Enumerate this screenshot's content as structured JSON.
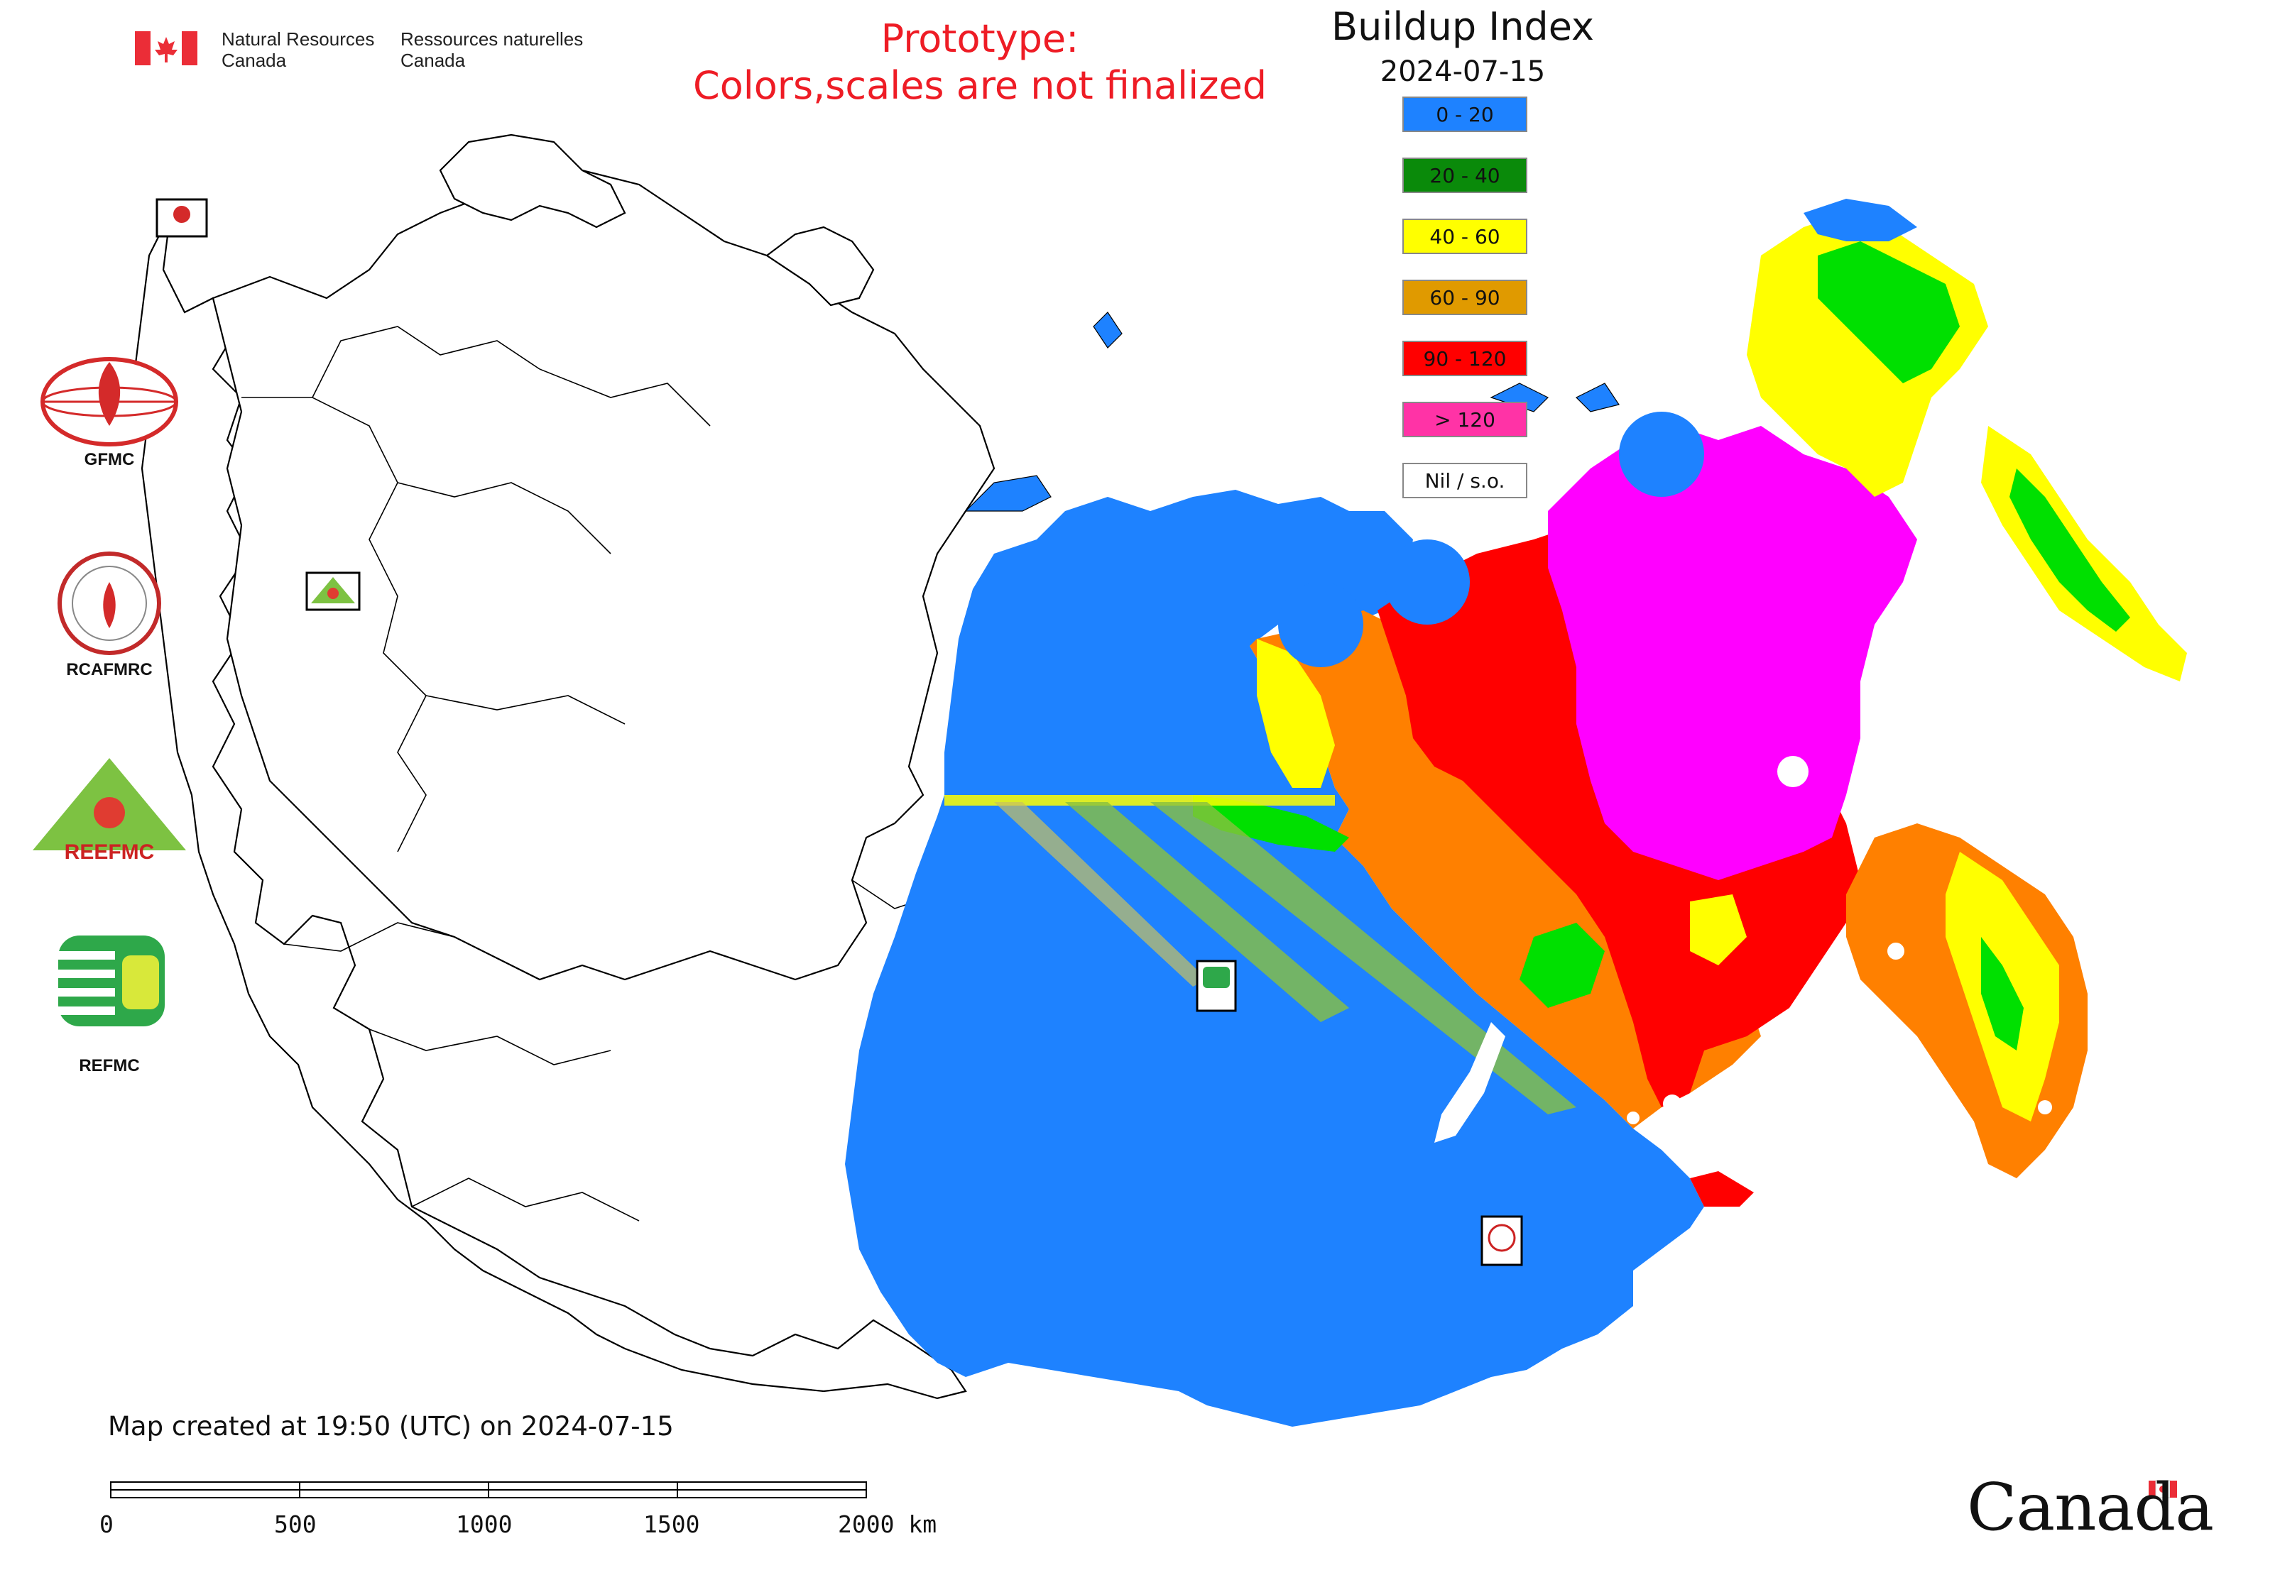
{
  "header": {
    "nrcan_en_line1": "Natural Resources",
    "nrcan_en_line2": "Canada",
    "nrcan_fr_line1": "Ressources naturelles",
    "nrcan_fr_line2": "Canada",
    "prototype_line1": "Prototype:",
    "prototype_line2": "Colors,scales are not finalized",
    "title": "Buildup Index",
    "date": "2024-07-15"
  },
  "legend": {
    "items": [
      {
        "label": "0 - 20",
        "color": "#1e82ff"
      },
      {
        "label": "20 - 40",
        "color": "#0a8a0a"
      },
      {
        "label": "40 - 60",
        "color": "#ffff00"
      },
      {
        "label": "60 - 90",
        "color": "#e09a00"
      },
      {
        "label": "90 - 120",
        "color": "#ff0000"
      },
      {
        "label": "> 120",
        "color": "#ff33a6"
      },
      {
        "label": "Nil / s.o.",
        "color": "#ffffff"
      }
    ]
  },
  "organizations": [
    {
      "name": "GFMC",
      "icon": "gfmc-logo-icon"
    },
    {
      "name": "RCAFMRC",
      "icon": "rcafmrc-logo-icon"
    },
    {
      "name": "",
      "icon": "reefmc-logo-icon",
      "logo_text": "REEFMC"
    },
    {
      "name": "REFMC",
      "icon": "refmc-logo-icon"
    }
  ],
  "footer": {
    "created": "Map created at 19:50 (UTC) on 2024-07-15",
    "canada_wordmark": "Canada"
  },
  "scale_bar": {
    "ticks": [
      "0",
      "500",
      "1000",
      "1500",
      "2000 km"
    ]
  },
  "colors": {
    "canada_red": "#eb2d37",
    "prototype_red": "#ee1c25"
  }
}
